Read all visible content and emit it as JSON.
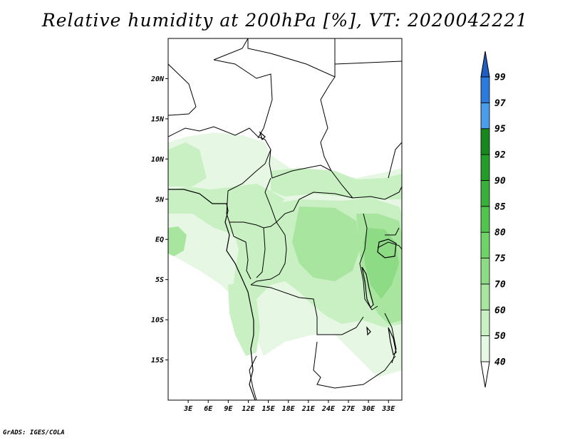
{
  "title": "Relative humidity at 200hPa [%], VT: 2020042221",
  "credit": "GrADS: IGES/COLA",
  "map": {
    "lon_range": [
      0,
      35
    ],
    "lat_range": [
      -20,
      25
    ],
    "lat_ticks": [
      {
        "value": 20,
        "label": "20N"
      },
      {
        "value": 15,
        "label": "15N"
      },
      {
        "value": 10,
        "label": "10N"
      },
      {
        "value": 5,
        "label": "5N"
      },
      {
        "value": 0,
        "label": "EQ"
      },
      {
        "value": -5,
        "label": "5S"
      },
      {
        "value": -10,
        "label": "10S"
      },
      {
        "value": -15,
        "label": "15S"
      }
    ],
    "lon_ticks": [
      {
        "value": 3,
        "label": "3E"
      },
      {
        "value": 6,
        "label": "6E"
      },
      {
        "value": 9,
        "label": "9E"
      },
      {
        "value": 12,
        "label": "12E"
      },
      {
        "value": 15,
        "label": "15E"
      },
      {
        "value": 18,
        "label": "18E"
      },
      {
        "value": 21,
        "label": "21E"
      },
      {
        "value": 24,
        "label": "24E"
      },
      {
        "value": 27,
        "label": "27E"
      },
      {
        "value": 30,
        "label": "30E"
      },
      {
        "value": 33,
        "label": "33E"
      }
    ]
  },
  "colorbar": {
    "levels": [
      "40",
      "50",
      "60",
      "70",
      "75",
      "80",
      "85",
      "90",
      "92",
      "95",
      "97",
      "99"
    ],
    "colors": [
      "#ffffff",
      "#e6f7e3",
      "#c8f0c2",
      "#a8e6a0",
      "#8ddc85",
      "#6fd36a",
      "#52c54f",
      "#38b03a",
      "#239d2a",
      "#16881d",
      "#4a9de8",
      "#2b7ade",
      "#1f5fc4"
    ]
  }
}
